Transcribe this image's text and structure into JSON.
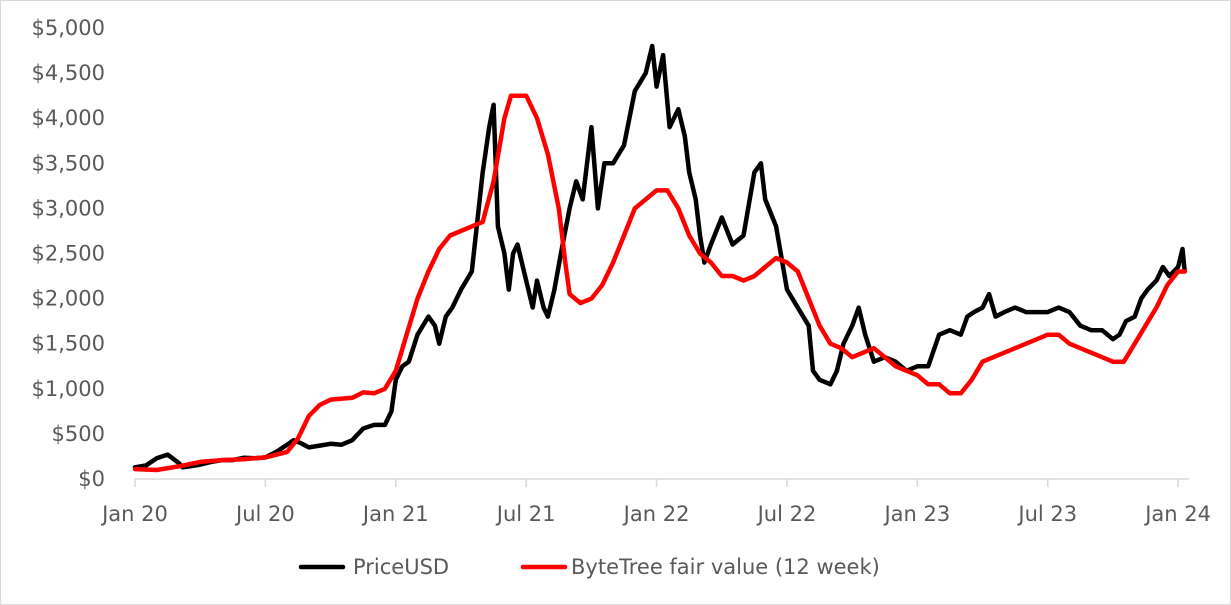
{
  "chart_data": {
    "type": "line",
    "title": "",
    "xlabel": "",
    "ylabel": "",
    "ylim": [
      0,
      5000
    ],
    "y_ticks": [
      {
        "value": 0,
        "label": "$0"
      },
      {
        "value": 500,
        "label": "$500"
      },
      {
        "value": 1000,
        "label": "$1,000"
      },
      {
        "value": 1500,
        "label": "$1,500"
      },
      {
        "value": 2000,
        "label": "$2,000"
      },
      {
        "value": 2500,
        "label": "$2,500"
      },
      {
        "value": 3000,
        "label": "$3,000"
      },
      {
        "value": 3500,
        "label": "$3,500"
      },
      {
        "value": 4000,
        "label": "$4,000"
      },
      {
        "value": 4500,
        "label": "$4,500"
      },
      {
        "value": 5000,
        "label": "$5,000"
      }
    ],
    "x_unit": "months since Jan 2020",
    "xlim": [
      0,
      48.5
    ],
    "x_ticks": [
      {
        "value": 0,
        "label": "Jan 20"
      },
      {
        "value": 6,
        "label": "Jul 20"
      },
      {
        "value": 12,
        "label": "Jan 21"
      },
      {
        "value": 18,
        "label": "Jul 21"
      },
      {
        "value": 24,
        "label": "Jan 22"
      },
      {
        "value": 30,
        "label": "Jul 22"
      },
      {
        "value": 36,
        "label": "Jan 23"
      },
      {
        "value": 42,
        "label": "Jul 23"
      },
      {
        "value": 48,
        "label": "Jan 24"
      }
    ],
    "grid": false,
    "legend_position": "bottom",
    "series": [
      {
        "name": "PriceUSD",
        "color": "#000000",
        "points": [
          [
            0,
            130
          ],
          [
            0.5,
            150
          ],
          [
            1,
            230
          ],
          [
            1.5,
            270
          ],
          [
            2,
            180
          ],
          [
            2.2,
            130
          ],
          [
            2.5,
            140
          ],
          [
            3,
            160
          ],
          [
            3.5,
            190
          ],
          [
            4,
            210
          ],
          [
            4.5,
            210
          ],
          [
            5,
            235
          ],
          [
            5.5,
            230
          ],
          [
            6,
            240
          ],
          [
            6.5,
            300
          ],
          [
            7,
            380
          ],
          [
            7.3,
            430
          ],
          [
            7.6,
            400
          ],
          [
            8,
            350
          ],
          [
            8.5,
            370
          ],
          [
            9,
            390
          ],
          [
            9.5,
            380
          ],
          [
            10,
            430
          ],
          [
            10.5,
            560
          ],
          [
            11,
            600
          ],
          [
            11.5,
            600
          ],
          [
            11.8,
            750
          ],
          [
            12,
            1100
          ],
          [
            12.3,
            1250
          ],
          [
            12.6,
            1300
          ],
          [
            13,
            1600
          ],
          [
            13.5,
            1800
          ],
          [
            13.8,
            1700
          ],
          [
            14,
            1500
          ],
          [
            14.3,
            1800
          ],
          [
            14.6,
            1900
          ],
          [
            15,
            2100
          ],
          [
            15.5,
            2300
          ],
          [
            16,
            3400
          ],
          [
            16.3,
            3900
          ],
          [
            16.5,
            4150
          ],
          [
            16.7,
            2800
          ],
          [
            17,
            2500
          ],
          [
            17.2,
            2100
          ],
          [
            17.4,
            2500
          ],
          [
            17.6,
            2600
          ],
          [
            18,
            2200
          ],
          [
            18.3,
            1900
          ],
          [
            18.5,
            2200
          ],
          [
            18.8,
            1900
          ],
          [
            19,
            1800
          ],
          [
            19.3,
            2100
          ],
          [
            19.6,
            2500
          ],
          [
            20,
            3000
          ],
          [
            20.3,
            3300
          ],
          [
            20.6,
            3100
          ],
          [
            21,
            3900
          ],
          [
            21.3,
            3000
          ],
          [
            21.6,
            3500
          ],
          [
            22,
            3500
          ],
          [
            22.5,
            3700
          ],
          [
            23,
            4300
          ],
          [
            23.5,
            4500
          ],
          [
            23.8,
            4800
          ],
          [
            24,
            4350
          ],
          [
            24.3,
            4700
          ],
          [
            24.6,
            3900
          ],
          [
            25,
            4100
          ],
          [
            25.3,
            3800
          ],
          [
            25.5,
            3400
          ],
          [
            25.8,
            3100
          ],
          [
            26,
            2700
          ],
          [
            26.2,
            2400
          ],
          [
            26.5,
            2600
          ],
          [
            27,
            2900
          ],
          [
            27.5,
            2600
          ],
          [
            28,
            2700
          ],
          [
            28.5,
            3400
          ],
          [
            28.8,
            3500
          ],
          [
            29,
            3100
          ],
          [
            29.5,
            2800
          ],
          [
            30,
            2100
          ],
          [
            30.5,
            1900
          ],
          [
            31,
            1700
          ],
          [
            31.2,
            1200
          ],
          [
            31.5,
            1100
          ],
          [
            32,
            1050
          ],
          [
            32.3,
            1200
          ],
          [
            32.6,
            1500
          ],
          [
            33,
            1700
          ],
          [
            33.3,
            1900
          ],
          [
            33.6,
            1600
          ],
          [
            34,
            1300
          ],
          [
            34.5,
            1350
          ],
          [
            35,
            1300
          ],
          [
            35.5,
            1200
          ],
          [
            36,
            1250
          ],
          [
            36.5,
            1250
          ],
          [
            37,
            1600
          ],
          [
            37.5,
            1650
          ],
          [
            38,
            1600
          ],
          [
            38.3,
            1800
          ],
          [
            38.6,
            1850
          ],
          [
            39,
            1900
          ],
          [
            39.3,
            2050
          ],
          [
            39.6,
            1800
          ],
          [
            40,
            1850
          ],
          [
            40.5,
            1900
          ],
          [
            41,
            1850
          ],
          [
            41.5,
            1850
          ],
          [
            42,
            1850
          ],
          [
            42.5,
            1900
          ],
          [
            43,
            1850
          ],
          [
            43.5,
            1700
          ],
          [
            44,
            1650
          ],
          [
            44.5,
            1650
          ],
          [
            45,
            1550
          ],
          [
            45.3,
            1600
          ],
          [
            45.6,
            1750
          ],
          [
            46,
            1800
          ],
          [
            46.3,
            2000
          ],
          [
            46.6,
            2100
          ],
          [
            47,
            2200
          ],
          [
            47.3,
            2350
          ],
          [
            47.6,
            2250
          ],
          [
            48,
            2350
          ],
          [
            48.2,
            2550
          ],
          [
            48.3,
            2300
          ]
        ]
      },
      {
        "name": "ByteTree fair value (12 week)",
        "color": "#ff0000",
        "points": [
          [
            0,
            110
          ],
          [
            1,
            100
          ],
          [
            2,
            140
          ],
          [
            3,
            190
          ],
          [
            4,
            210
          ],
          [
            5,
            220
          ],
          [
            6,
            240
          ],
          [
            7,
            300
          ],
          [
            7.5,
            450
          ],
          [
            8,
            700
          ],
          [
            8.5,
            820
          ],
          [
            9,
            880
          ],
          [
            10,
            900
          ],
          [
            10.5,
            960
          ],
          [
            11,
            950
          ],
          [
            11.5,
            1000
          ],
          [
            12,
            1200
          ],
          [
            12.5,
            1600
          ],
          [
            13,
            2000
          ],
          [
            13.5,
            2300
          ],
          [
            14,
            2550
          ],
          [
            14.5,
            2700
          ],
          [
            15,
            2750
          ],
          [
            15.5,
            2800
          ],
          [
            16,
            2850
          ],
          [
            16.5,
            3300
          ],
          [
            17,
            4000
          ],
          [
            17.3,
            4250
          ],
          [
            18,
            4250
          ],
          [
            18.5,
            4000
          ],
          [
            19,
            3600
          ],
          [
            19.5,
            3000
          ],
          [
            19.8,
            2400
          ],
          [
            20,
            2050
          ],
          [
            20.5,
            1950
          ],
          [
            21,
            2000
          ],
          [
            21.5,
            2150
          ],
          [
            22,
            2400
          ],
          [
            22.5,
            2700
          ],
          [
            23,
            3000
          ],
          [
            23.5,
            3100
          ],
          [
            24,
            3200
          ],
          [
            24.5,
            3200
          ],
          [
            25,
            3000
          ],
          [
            25.5,
            2700
          ],
          [
            26,
            2500
          ],
          [
            26.5,
            2400
          ],
          [
            27,
            2250
          ],
          [
            27.5,
            2250
          ],
          [
            28,
            2200
          ],
          [
            28.5,
            2250
          ],
          [
            29,
            2350
          ],
          [
            29.5,
            2450
          ],
          [
            30,
            2400
          ],
          [
            30.5,
            2300
          ],
          [
            31,
            2000
          ],
          [
            31.5,
            1700
          ],
          [
            32,
            1500
          ],
          [
            32.5,
            1450
          ],
          [
            33,
            1350
          ],
          [
            33.5,
            1400
          ],
          [
            34,
            1450
          ],
          [
            34.5,
            1350
          ],
          [
            35,
            1250
          ],
          [
            35.5,
            1200
          ],
          [
            36,
            1150
          ],
          [
            36.5,
            1050
          ],
          [
            37,
            1050
          ],
          [
            37.5,
            950
          ],
          [
            38,
            950
          ],
          [
            38.5,
            1100
          ],
          [
            39,
            1300
          ],
          [
            39.5,
            1350
          ],
          [
            40,
            1400
          ],
          [
            40.5,
            1450
          ],
          [
            41,
            1500
          ],
          [
            41.5,
            1550
          ],
          [
            42,
            1600
          ],
          [
            42.5,
            1600
          ],
          [
            43,
            1500
          ],
          [
            43.5,
            1450
          ],
          [
            44,
            1400
          ],
          [
            44.5,
            1350
          ],
          [
            45,
            1300
          ],
          [
            45.5,
            1300
          ],
          [
            46,
            1500
          ],
          [
            46.5,
            1700
          ],
          [
            47,
            1900
          ],
          [
            47.5,
            2150
          ],
          [
            48,
            2300
          ],
          [
            48.3,
            2300
          ]
        ]
      }
    ]
  }
}
